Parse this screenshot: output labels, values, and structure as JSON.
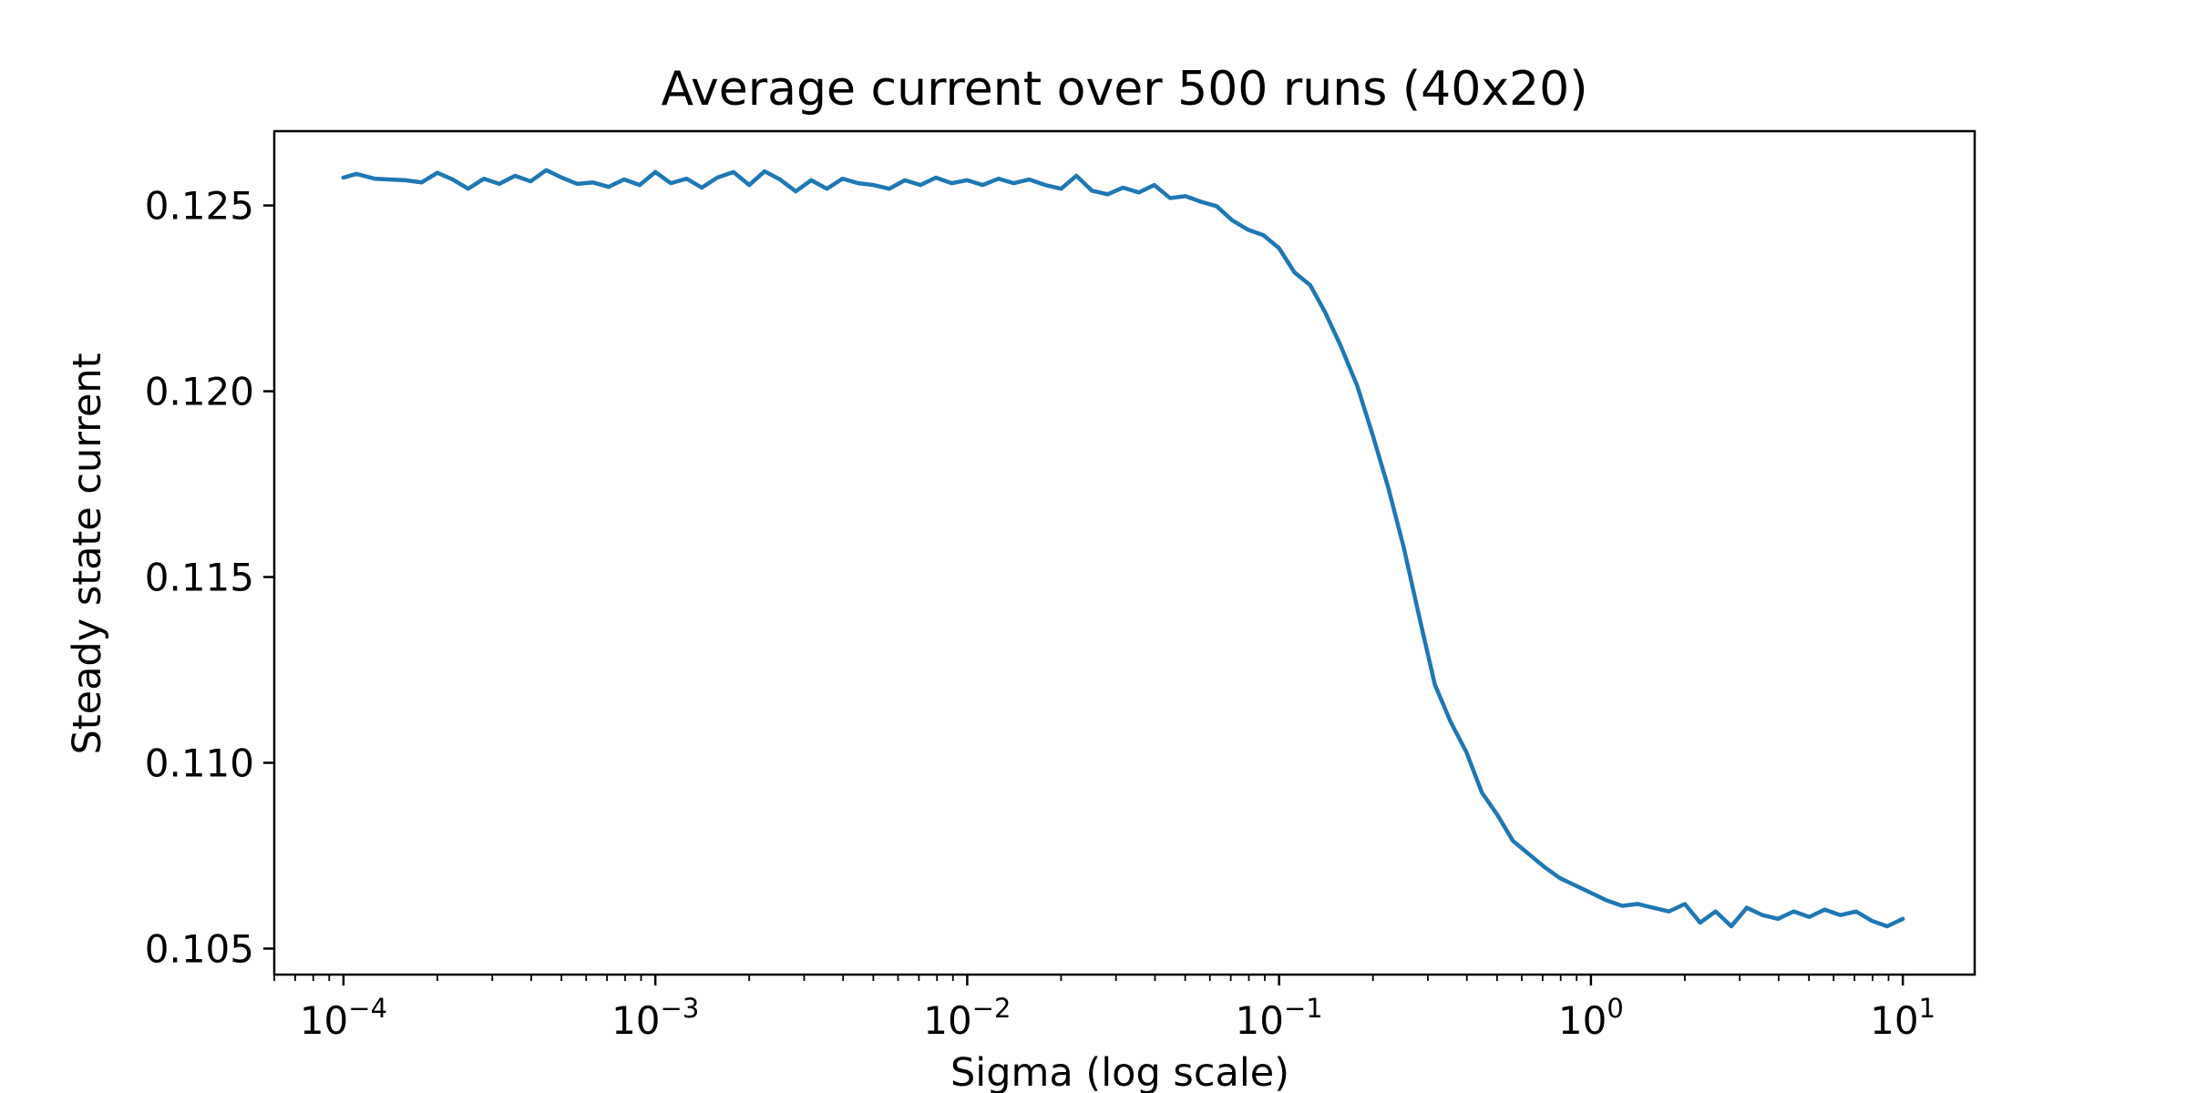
{
  "chart_data": {
    "type": "line",
    "title": "Average current over 500 runs (40x20)",
    "xlabel": "Sigma (log scale)",
    "ylabel": "Steady state current",
    "x_scale": "log",
    "xlim": [
      6e-05,
      17
    ],
    "ylim": [
      0.1043,
      0.127
    ],
    "x_ticks": [
      {
        "value": 0.0001,
        "base": "10",
        "exp": "−4"
      },
      {
        "value": 0.001,
        "base": "10",
        "exp": "−3"
      },
      {
        "value": 0.01,
        "base": "10",
        "exp": "−2"
      },
      {
        "value": 0.1,
        "base": "10",
        "exp": "−1"
      },
      {
        "value": 1,
        "base": "10",
        "exp": "0"
      },
      {
        "value": 10,
        "base": "10",
        "exp": "1"
      }
    ],
    "y_ticks": [
      {
        "value": 0.105,
        "label": "0.105"
      },
      {
        "value": 0.11,
        "label": "0.110"
      },
      {
        "value": 0.115,
        "label": "0.115"
      },
      {
        "value": 0.12,
        "label": "0.120"
      },
      {
        "value": 0.125,
        "label": "0.125"
      }
    ],
    "grid": false,
    "color": "#1f77b4",
    "series": [
      {
        "points": [
          [
            0.0001,
            0.12575
          ],
          [
            0.00011,
            0.12585
          ],
          [
            0.000126,
            0.12572
          ],
          [
            0.000158,
            0.12568
          ],
          [
            0.000178,
            0.12562
          ],
          [
            0.0002,
            0.12588
          ],
          [
            0.000224,
            0.1257
          ],
          [
            0.000251,
            0.12545
          ],
          [
            0.000282,
            0.12572
          ],
          [
            0.000316,
            0.12558
          ],
          [
            0.000355,
            0.1258
          ],
          [
            0.000398,
            0.12565
          ],
          [
            0.000447,
            0.12595
          ],
          [
            0.000501,
            0.12575
          ],
          [
            0.000562,
            0.12558
          ],
          [
            0.000631,
            0.12562
          ],
          [
            0.000708,
            0.1255
          ],
          [
            0.000794,
            0.1257
          ],
          [
            0.000891,
            0.12555
          ],
          [
            0.001,
            0.1259
          ],
          [
            0.00112,
            0.1256
          ],
          [
            0.00126,
            0.12572
          ],
          [
            0.00141,
            0.12548
          ],
          [
            0.00158,
            0.12575
          ],
          [
            0.00178,
            0.1259
          ],
          [
            0.002,
            0.12555
          ],
          [
            0.00224,
            0.12592
          ],
          [
            0.00251,
            0.1257
          ],
          [
            0.00282,
            0.12538
          ],
          [
            0.00316,
            0.12568
          ],
          [
            0.00355,
            0.12545
          ],
          [
            0.00398,
            0.12572
          ],
          [
            0.00447,
            0.1256
          ],
          [
            0.00501,
            0.12555
          ],
          [
            0.00562,
            0.12545
          ],
          [
            0.00631,
            0.12568
          ],
          [
            0.00708,
            0.12555
          ],
          [
            0.00794,
            0.12575
          ],
          [
            0.00891,
            0.1256
          ],
          [
            0.01,
            0.12568
          ],
          [
            0.0112,
            0.12555
          ],
          [
            0.0126,
            0.12572
          ],
          [
            0.0141,
            0.1256
          ],
          [
            0.0158,
            0.1257
          ],
          [
            0.0178,
            0.12555
          ],
          [
            0.02,
            0.12545
          ],
          [
            0.0224,
            0.1258
          ],
          [
            0.0251,
            0.1254
          ],
          [
            0.0282,
            0.1253
          ],
          [
            0.0316,
            0.12548
          ],
          [
            0.0355,
            0.12535
          ],
          [
            0.0398,
            0.12555
          ],
          [
            0.0447,
            0.1252
          ],
          [
            0.0501,
            0.12525
          ],
          [
            0.0562,
            0.1251
          ],
          [
            0.0631,
            0.12498
          ],
          [
            0.0708,
            0.1246
          ],
          [
            0.0794,
            0.12435
          ],
          [
            0.0891,
            0.1242
          ],
          [
            0.1,
            0.12385
          ],
          [
            0.112,
            0.1232
          ],
          [
            0.126,
            0.12285
          ],
          [
            0.141,
            0.1221
          ],
          [
            0.158,
            0.1212
          ],
          [
            0.178,
            0.12015
          ],
          [
            0.2,
            0.1188
          ],
          [
            0.224,
            0.1174
          ],
          [
            0.251,
            0.1158
          ],
          [
            0.282,
            0.1139
          ],
          [
            0.316,
            0.1121
          ],
          [
            0.355,
            0.1111
          ],
          [
            0.398,
            0.1103
          ],
          [
            0.447,
            0.1092
          ],
          [
            0.501,
            0.1086
          ],
          [
            0.562,
            0.1079
          ],
          [
            0.631,
            0.10755
          ],
          [
            0.708,
            0.1072
          ],
          [
            0.794,
            0.1069
          ],
          [
            0.891,
            0.1067
          ],
          [
            1.0,
            0.1065
          ],
          [
            1.12,
            0.1063
          ],
          [
            1.26,
            0.10615
          ],
          [
            1.41,
            0.1062
          ],
          [
            1.58,
            0.1061
          ],
          [
            1.78,
            0.106
          ],
          [
            2.0,
            0.1062
          ],
          [
            2.24,
            0.1057
          ],
          [
            2.51,
            0.106
          ],
          [
            2.82,
            0.1056
          ],
          [
            3.16,
            0.1061
          ],
          [
            3.55,
            0.1059
          ],
          [
            3.98,
            0.1058
          ],
          [
            4.47,
            0.106
          ],
          [
            5.01,
            0.10585
          ],
          [
            5.62,
            0.10605
          ],
          [
            6.31,
            0.1059
          ],
          [
            7.08,
            0.106
          ],
          [
            7.94,
            0.10575
          ],
          [
            8.91,
            0.1056
          ],
          [
            10.0,
            0.1058
          ]
        ]
      }
    ]
  }
}
